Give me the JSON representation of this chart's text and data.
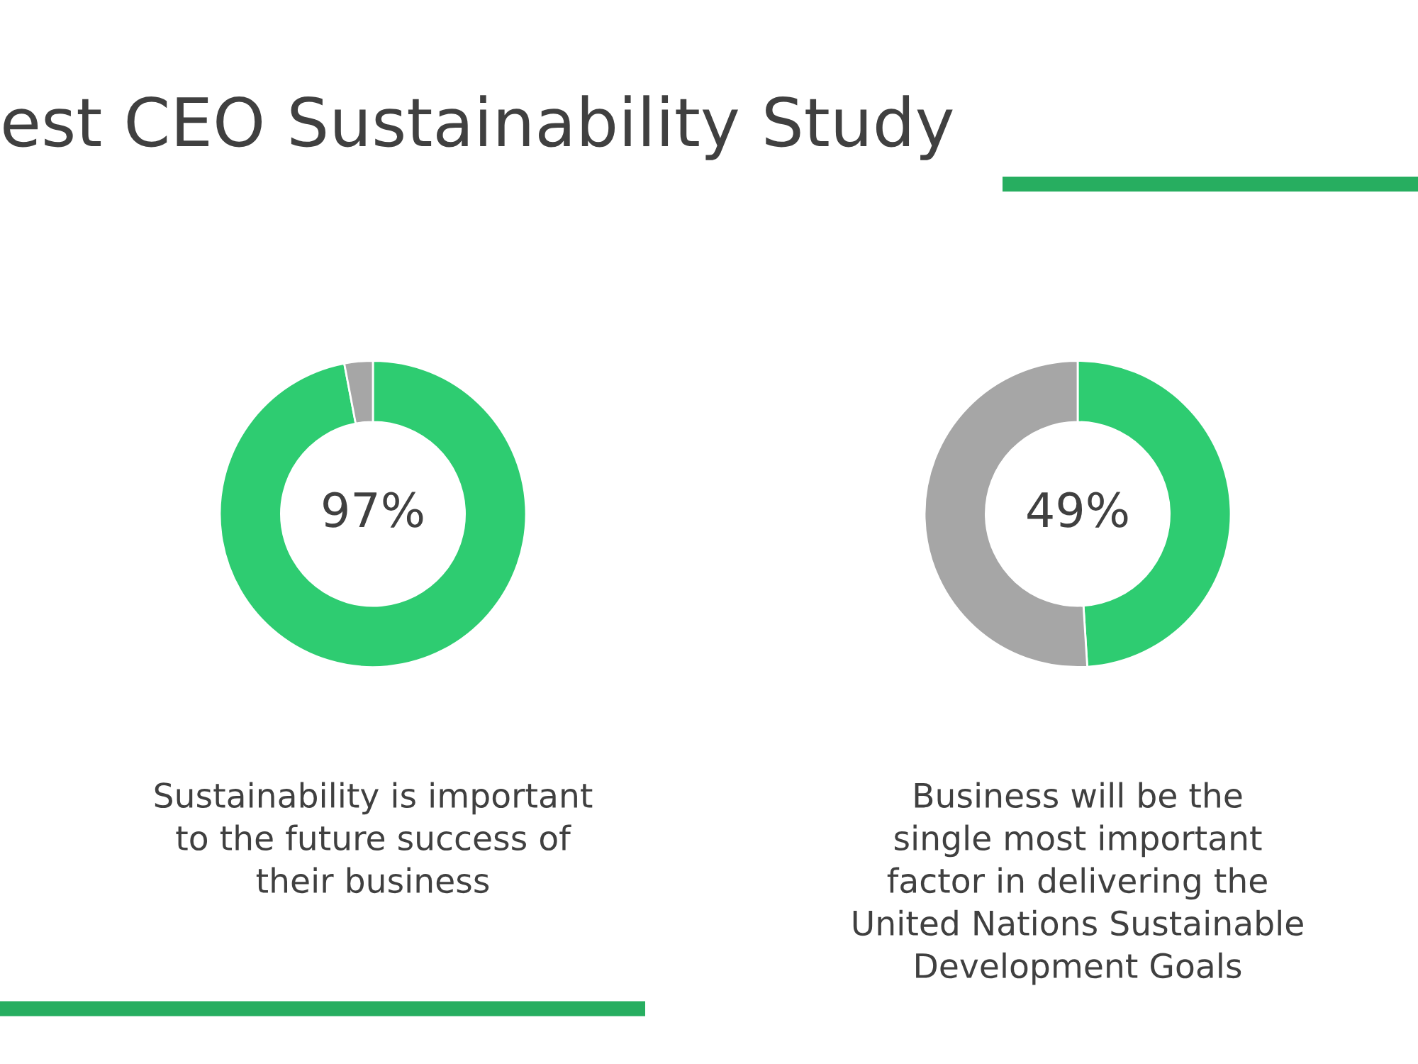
{
  "chart_data": [
    {
      "type": "donut",
      "title": "est CEO Sustainability Study",
      "categories": [
        null,
        null
      ],
      "values": [
        97,
        3
      ],
      "colors": [
        "#2ecc71",
        "#a6a6a6"
      ],
      "value_labels": [
        "97%",
        null
      ],
      "annotations": [
        "Sustainability is important to the future success of their business"
      ]
    },
    {
      "type": "donut",
      "categories": [
        null,
        null
      ],
      "values": [
        49,
        51
      ],
      "colors": [
        "#2ecc71",
        "#a6a6a6"
      ],
      "value_labels": [
        "49%",
        null
      ],
      "annotations": [
        "Business will be the single most important factor in delivering the United Nations Sustainable Development Goals"
      ]
    }
  ]
}
